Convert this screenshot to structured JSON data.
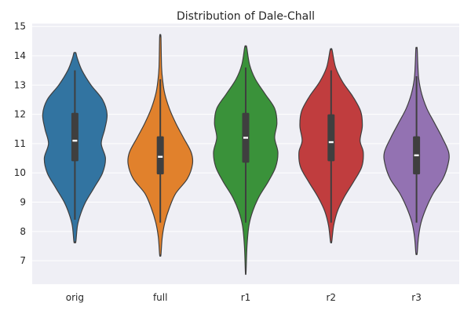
{
  "chart_data": {
    "type": "violin",
    "title": "Distribution of Dale-Chall",
    "xlabel": "",
    "ylabel": "",
    "ylim": [
      6.2,
      15.1
    ],
    "yticks": [
      7,
      8,
      9,
      10,
      11,
      12,
      13,
      14,
      15
    ],
    "grid": true,
    "legend": "none",
    "categories": [
      "orig",
      "full",
      "r1",
      "r2",
      "r3"
    ],
    "series": [
      {
        "category": "orig",
        "color": "#3274a1",
        "min": 7.65,
        "max": 14.1,
        "whisker_low": 8.4,
        "whisker_high": 13.5,
        "q1": 10.4,
        "median": 11.1,
        "q3": 12.05,
        "density": [
          [
            7.65,
            0.03
          ],
          [
            8.2,
            0.08
          ],
          [
            8.6,
            0.18
          ],
          [
            9.0,
            0.33
          ],
          [
            9.5,
            0.6
          ],
          [
            10.0,
            0.86
          ],
          [
            10.5,
            0.95
          ],
          [
            11.0,
            0.82
          ],
          [
            11.5,
            0.93
          ],
          [
            12.0,
            1.0
          ],
          [
            12.5,
            0.86
          ],
          [
            13.0,
            0.5
          ],
          [
            13.5,
            0.22
          ],
          [
            13.9,
            0.08
          ],
          [
            14.1,
            0.03
          ]
        ]
      },
      {
        "category": "full",
        "color": "#e1812c",
        "min": 7.2,
        "max": 14.65,
        "whisker_low": 8.3,
        "whisker_high": 13.2,
        "q1": 9.95,
        "median": 10.55,
        "q3": 11.25,
        "density": [
          [
            7.2,
            0.02
          ],
          [
            7.8,
            0.06
          ],
          [
            8.3,
            0.14
          ],
          [
            8.8,
            0.28
          ],
          [
            9.3,
            0.48
          ],
          [
            9.8,
            0.84
          ],
          [
            10.3,
            1.0
          ],
          [
            10.7,
            0.96
          ],
          [
            11.2,
            0.72
          ],
          [
            11.7,
            0.48
          ],
          [
            12.2,
            0.28
          ],
          [
            12.7,
            0.14
          ],
          [
            13.1,
            0.08
          ],
          [
            13.6,
            0.04
          ],
          [
            14.65,
            0.02
          ]
        ]
      },
      {
        "category": "r1",
        "color": "#3a923a",
        "min": 6.6,
        "max": 14.3,
        "whisker_low": 8.3,
        "whisker_high": 13.6,
        "q1": 10.35,
        "median": 11.2,
        "q3": 12.05,
        "density": [
          [
            6.6,
            0.01
          ],
          [
            7.5,
            0.04
          ],
          [
            8.2,
            0.1
          ],
          [
            8.7,
            0.22
          ],
          [
            9.2,
            0.42
          ],
          [
            9.7,
            0.7
          ],
          [
            10.2,
            0.93
          ],
          [
            10.7,
            1.0
          ],
          [
            11.2,
            0.9
          ],
          [
            11.7,
            0.97
          ],
          [
            12.2,
            0.9
          ],
          [
            12.7,
            0.6
          ],
          [
            13.2,
            0.3
          ],
          [
            13.7,
            0.12
          ],
          [
            14.3,
            0.03
          ]
        ]
      },
      {
        "category": "r2",
        "color": "#c03d3e",
        "min": 7.65,
        "max": 14.2,
        "whisker_low": 8.3,
        "whisker_high": 13.5,
        "q1": 10.4,
        "median": 11.05,
        "q3": 12.0,
        "density": [
          [
            7.65,
            0.02
          ],
          [
            8.2,
            0.08
          ],
          [
            8.7,
            0.2
          ],
          [
            9.2,
            0.42
          ],
          [
            9.7,
            0.7
          ],
          [
            10.2,
            0.95
          ],
          [
            10.7,
            1.0
          ],
          [
            11.1,
            0.9
          ],
          [
            11.6,
            0.97
          ],
          [
            12.1,
            0.92
          ],
          [
            12.6,
            0.68
          ],
          [
            13.1,
            0.36
          ],
          [
            13.6,
            0.14
          ],
          [
            14.2,
            0.03
          ]
        ]
      },
      {
        "category": "r3",
        "color": "#9372b2",
        "min": 7.25,
        "max": 14.25,
        "whisker_low": 8.3,
        "whisker_high": 13.3,
        "q1": 9.95,
        "median": 10.6,
        "q3": 11.25,
        "density": [
          [
            7.25,
            0.02
          ],
          [
            7.8,
            0.06
          ],
          [
            8.3,
            0.14
          ],
          [
            8.8,
            0.3
          ],
          [
            9.3,
            0.52
          ],
          [
            9.8,
            0.82
          ],
          [
            10.3,
            0.98
          ],
          [
            10.7,
            1.0
          ],
          [
            11.2,
            0.8
          ],
          [
            11.7,
            0.56
          ],
          [
            12.2,
            0.32
          ],
          [
            12.7,
            0.16
          ],
          [
            13.2,
            0.07
          ],
          [
            13.7,
            0.04
          ],
          [
            14.25,
            0.02
          ]
        ]
      }
    ]
  }
}
